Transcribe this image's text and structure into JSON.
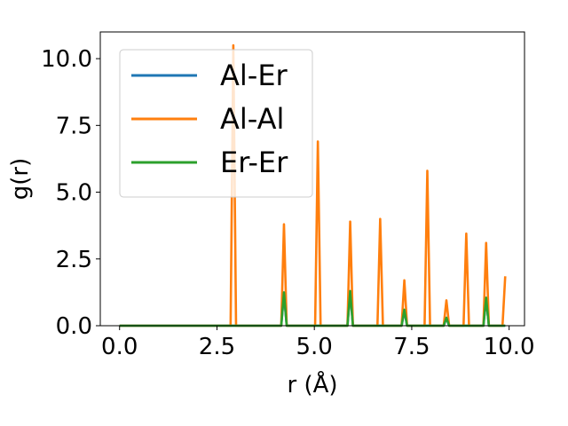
{
  "chart_data": {
    "type": "line",
    "title": "",
    "xlabel": "r (Å)",
    "ylabel": "g(r)",
    "xlim": [
      -0.495,
      10.395
    ],
    "ylim": [
      0,
      11.0
    ],
    "xticks": [
      0.0,
      2.5,
      5.0,
      7.5,
      10.0
    ],
    "xtick_labels": [
      "0.0",
      "2.5",
      "5.0",
      "7.5",
      "10.0"
    ],
    "yticks": [
      0.0,
      2.5,
      5.0,
      7.5,
      10.0
    ],
    "ytick_labels": [
      "0.0",
      "2.5",
      "5.0",
      "7.5",
      "10.0"
    ],
    "grid": false,
    "legend_position": "upper-left",
    "peak_half_width": 0.07,
    "x_range": [
      0.0,
      9.9
    ],
    "series": [
      {
        "name": "Al-Er",
        "color": "#1f77b4",
        "peaks": [
          {
            "r": 4.22,
            "g": 1.2
          },
          {
            "r": 5.92,
            "g": 1.25
          },
          {
            "r": 7.31,
            "g": 0.55
          },
          {
            "r": 8.39,
            "g": 0.28
          },
          {
            "r": 9.41,
            "g": 1.0
          }
        ]
      },
      {
        "name": "Al-Al",
        "color": "#ff7f0e",
        "peaks": [
          {
            "r": 2.92,
            "g": 10.5
          },
          {
            "r": 4.22,
            "g": 3.8
          },
          {
            "r": 5.09,
            "g": 6.9
          },
          {
            "r": 5.92,
            "g": 3.9
          },
          {
            "r": 6.69,
            "g": 4.0
          },
          {
            "r": 7.31,
            "g": 1.7
          },
          {
            "r": 7.9,
            "g": 5.8
          },
          {
            "r": 8.39,
            "g": 0.95
          },
          {
            "r": 8.9,
            "g": 3.45
          },
          {
            "r": 9.41,
            "g": 3.1
          },
          {
            "r": 9.9,
            "g": 1.85
          }
        ]
      },
      {
        "name": "Er-Er",
        "color": "#2ca02c",
        "peaks": [
          {
            "r": 4.22,
            "g": 1.25
          },
          {
            "r": 5.92,
            "g": 1.3
          },
          {
            "r": 7.31,
            "g": 0.6
          },
          {
            "r": 8.39,
            "g": 0.3
          },
          {
            "r": 9.41,
            "g": 1.05
          }
        ]
      }
    ]
  }
}
